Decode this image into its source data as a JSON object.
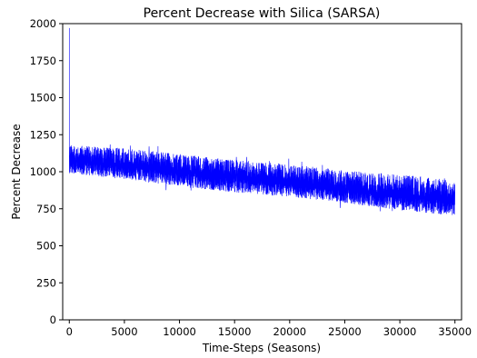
{
  "chart_data": {
    "type": "line",
    "title": "Percent Decrease with Silica (SARSA)",
    "xlabel": "Time-Steps (Seasons)",
    "ylabel": "Percent Decrease",
    "xlim": [
      -600,
      35600
    ],
    "ylim": [
      0,
      2000
    ],
    "xticks": [
      0,
      5000,
      10000,
      15000,
      20000,
      25000,
      30000,
      35000
    ],
    "yticks": [
      0,
      250,
      500,
      750,
      1000,
      1250,
      1500,
      1750,
      2000
    ],
    "grid": false,
    "legend": "none",
    "series": [
      {
        "color": "#0000ff",
        "x_range": [
          0,
          35000
        ],
        "initial_spike": [
          {
            "x": 0,
            "y": 1970
          },
          {
            "x": 0,
            "y": 1820
          }
        ],
        "trend": {
          "x": [
            0,
            5000,
            10000,
            15000,
            20000,
            25000,
            30000,
            35000
          ],
          "y_center": [
            1075,
            1040,
            1000,
            960,
            920,
            880,
            840,
            800
          ],
          "band_low": [
            990,
            950,
            900,
            860,
            830,
            790,
            740,
            700
          ],
          "band_high": [
            1180,
            1160,
            1120,
            1080,
            1050,
            1010,
            980,
            950
          ]
        }
      }
    ]
  }
}
